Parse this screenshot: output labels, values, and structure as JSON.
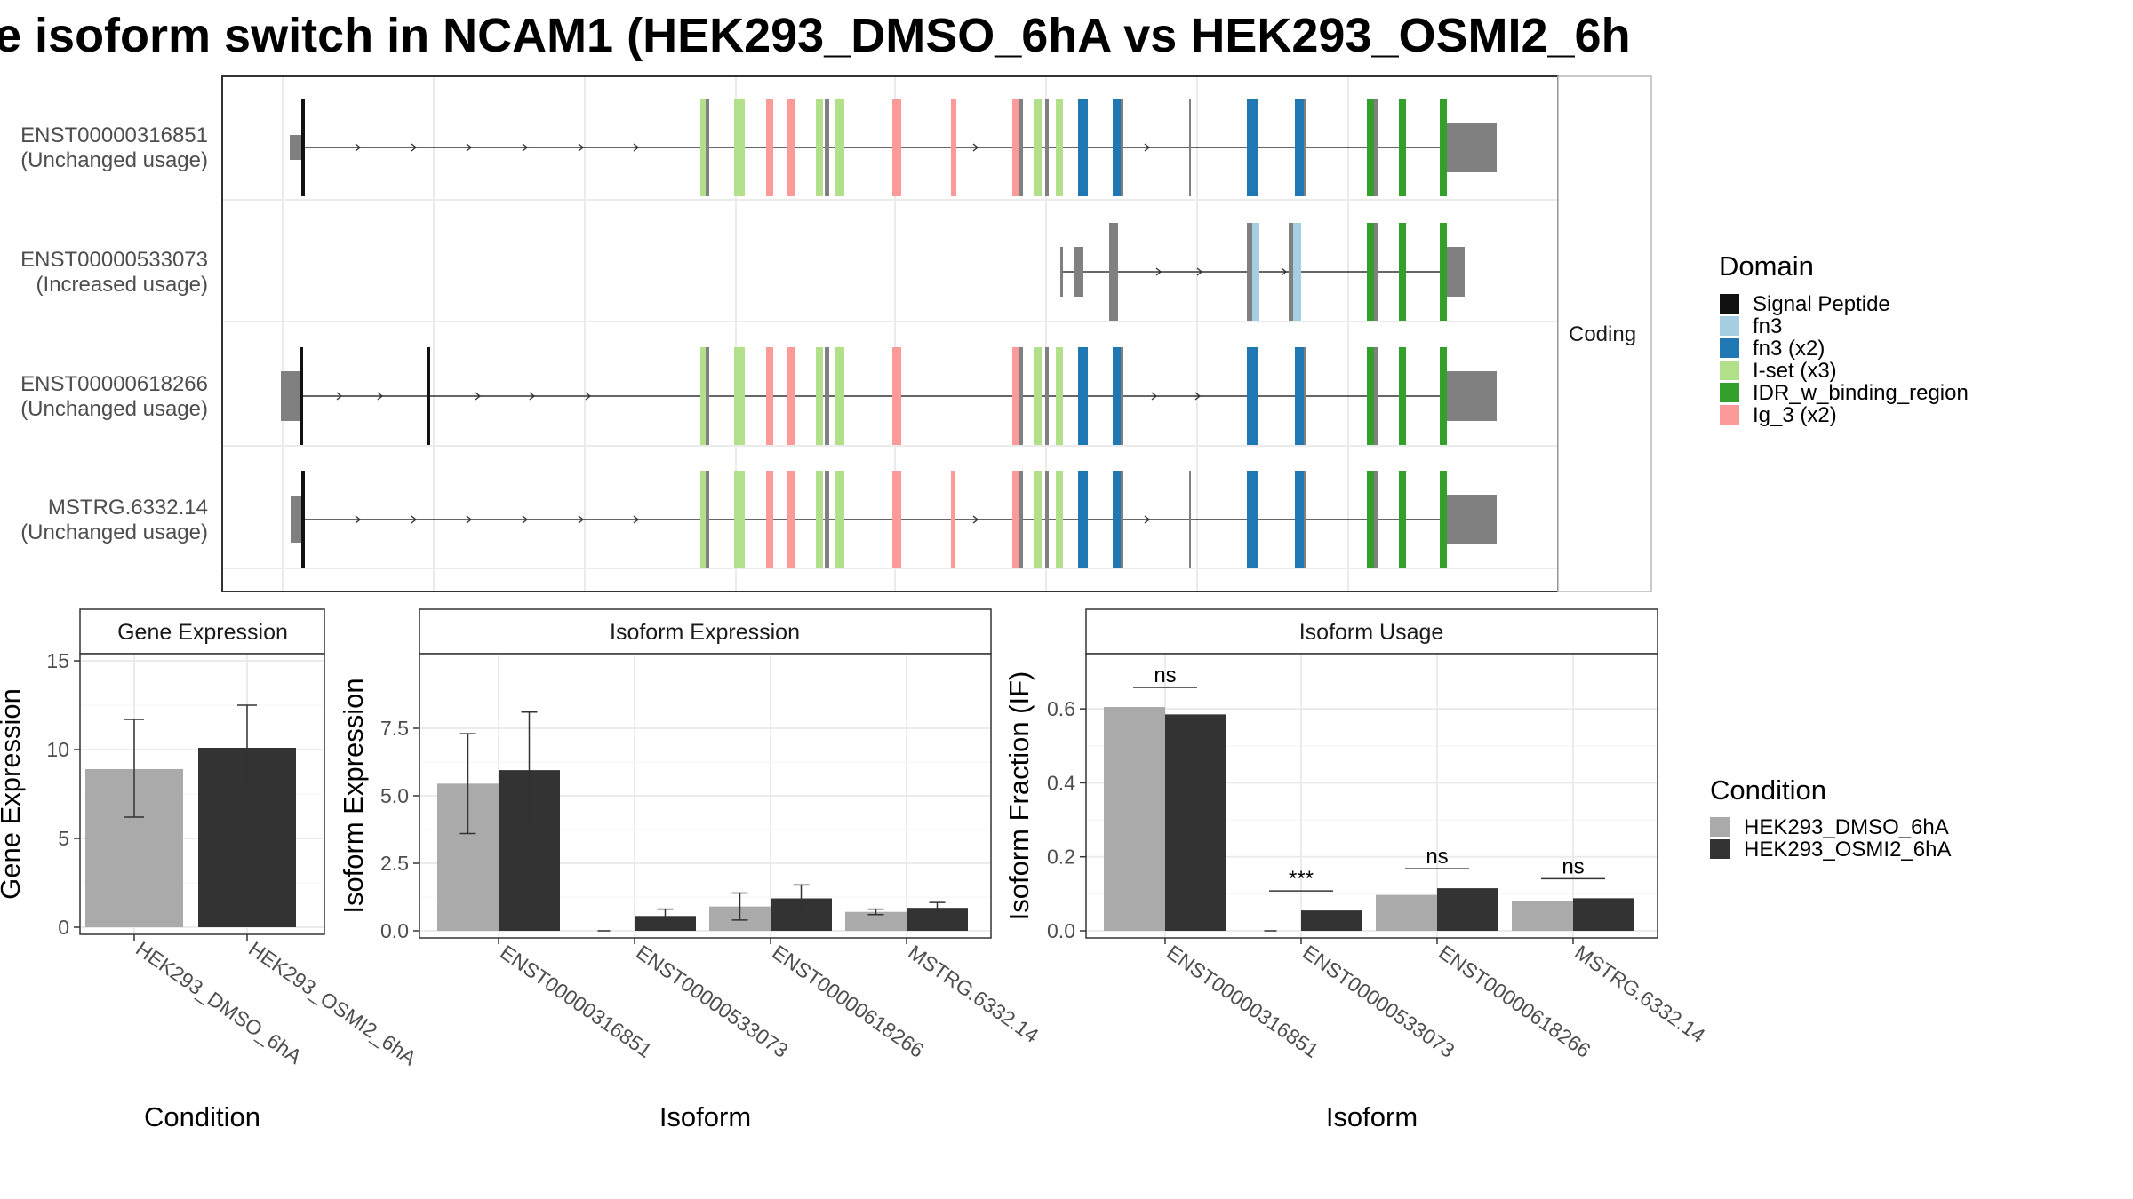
{
  "title": "e isoform switch in NCAM1 (HEK293_DMSO_6hA vs HEK293_OSMI2_6h",
  "structure_panel": {
    "strip_label": "Coding",
    "transcripts": [
      {
        "id": "ENST00000316851",
        "status": "(Unchanged usage)"
      },
      {
        "id": "ENST00000533073",
        "status": "(Increased usage)"
      },
      {
        "id": "ENST00000618266",
        "status": "(Unchanged usage)"
      },
      {
        "id": "MSTRG.6332.14",
        "status": "(Unchanged usage)"
      }
    ]
  },
  "domain_legend": {
    "title": "Domain",
    "items": [
      {
        "label": "Signal Peptide",
        "color": "#111111"
      },
      {
        "label": "fn3",
        "color": "#a6cee3"
      },
      {
        "label": "fn3 (x2)",
        "color": "#1f78b4"
      },
      {
        "label": "I-set (x3)",
        "color": "#b2df8a"
      },
      {
        "label": "IDR_w_binding_region",
        "color": "#33a02c"
      },
      {
        "label": "Ig_3 (x2)",
        "color": "#fb9a99"
      }
    ]
  },
  "condition_legend": {
    "title": "Condition",
    "items": [
      {
        "label": "HEK293_DMSO_6hA",
        "color": "#aaaaaa"
      },
      {
        "label": "HEK293_OSMI2_6hA",
        "color": "#333333"
      }
    ]
  },
  "chart_data": [
    {
      "type": "bar",
      "title": "Gene Expression",
      "xlabel": "Condition",
      "ylabel": "Gene Expression",
      "ylim": [
        0,
        15
      ],
      "yticks": [
        "0",
        "5",
        "10",
        "15"
      ],
      "categories": [
        "HEK293_DMSO_6hA",
        "HEK293_OSMI2_6hA"
      ],
      "values": [
        8.9,
        10.1
      ],
      "error_low": [
        6.2,
        7.7
      ],
      "error_high": [
        11.7,
        12.5
      ]
    },
    {
      "type": "bar",
      "title": "Isoform Expression",
      "xlabel": "Isoform",
      "ylabel": "Isoform Expression",
      "ylim": [
        0,
        10
      ],
      "yticks": [
        "0.0",
        "2.5",
        "5.0",
        "7.5"
      ],
      "categories": [
        "ENST00000316851",
        "ENST00000533073",
        "ENST00000618266",
        "MSTRG.6332.14"
      ],
      "series": [
        {
          "name": "HEK293_DMSO_6hA",
          "values": [
            5.45,
            0.0,
            0.9,
            0.7
          ],
          "error_low": [
            3.6,
            0.0,
            0.4,
            0.6
          ],
          "error_high": [
            7.3,
            0.0,
            1.4,
            0.8
          ]
        },
        {
          "name": "HEK293_OSMI2_6hA",
          "values": [
            5.95,
            0.55,
            1.2,
            0.85
          ],
          "error_low": [
            3.85,
            0.3,
            0.7,
            0.65
          ],
          "error_high": [
            8.1,
            0.8,
            1.7,
            1.05
          ]
        }
      ]
    },
    {
      "type": "bar",
      "title": "Isoform Usage",
      "xlabel": "Isoform",
      "ylabel": "Isoform Fraction (IF)",
      "ylim": [
        0,
        0.73
      ],
      "yticks": [
        "0.0",
        "0.2",
        "0.4",
        "0.6"
      ],
      "categories": [
        "ENST00000316851",
        "ENST00000533073",
        "ENST00000618266",
        "MSTRG.6332.14"
      ],
      "series": [
        {
          "name": "HEK293_DMSO_6hA",
          "values": [
            0.605,
            0.0,
            0.097,
            0.08
          ]
        },
        {
          "name": "HEK293_OSMI2_6hA",
          "values": [
            0.585,
            0.055,
            0.115,
            0.088
          ]
        }
      ],
      "significance": [
        "ns",
        "***",
        "ns",
        "ns"
      ]
    }
  ]
}
